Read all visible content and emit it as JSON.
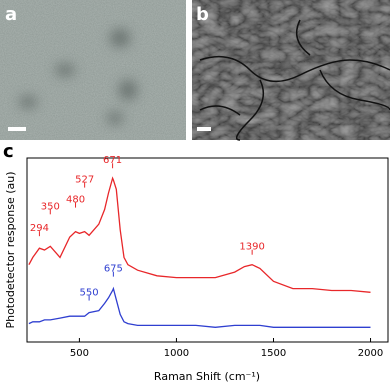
{
  "panel_labels": [
    "a",
    "b",
    "c"
  ],
  "chart_data": {
    "type": "line",
    "ylabel": "Photodetector response (au)",
    "xlabel": "Raman Shift (cm⁻¹)",
    "xlim": [
      230,
      2090
    ],
    "xticks": [
      500,
      1000,
      1500,
      2000
    ],
    "ylim": [
      0,
      100
    ],
    "x": [
      240,
      260,
      294,
      320,
      350,
      400,
      450,
      480,
      500,
      527,
      550,
      600,
      630,
      650,
      671,
      675,
      690,
      710,
      730,
      750,
      800,
      900,
      1000,
      1100,
      1200,
      1300,
      1350,
      1390,
      1430,
      1500,
      1600,
      1700,
      1800,
      1900,
      2000
    ],
    "series": [
      {
        "color": "#e8272a",
        "values": [
          42,
          46,
          51,
          50,
          52,
          46,
          57,
          60,
          59,
          60,
          58,
          64,
          72,
          81,
          89,
          88,
          83,
          61,
          46,
          42,
          39,
          36,
          35,
          35,
          35,
          38,
          41,
          42,
          40,
          33,
          29,
          29,
          28,
          28,
          27
        ],
        "peaks": [
          294,
          350,
          480,
          527,
          671,
          1390
        ]
      },
      {
        "color": "#2f3fd0",
        "values": [
          10,
          11,
          11,
          12,
          12,
          13,
          14,
          14,
          14,
          14,
          16,
          17,
          21,
          24,
          28,
          29,
          23,
          15,
          11,
          10,
          9,
          9,
          9,
          9,
          8,
          9,
          9,
          9,
          9,
          8,
          8,
          8,
          8,
          8,
          8
        ],
        "peaks": [
          550,
          675
        ]
      }
    ]
  }
}
